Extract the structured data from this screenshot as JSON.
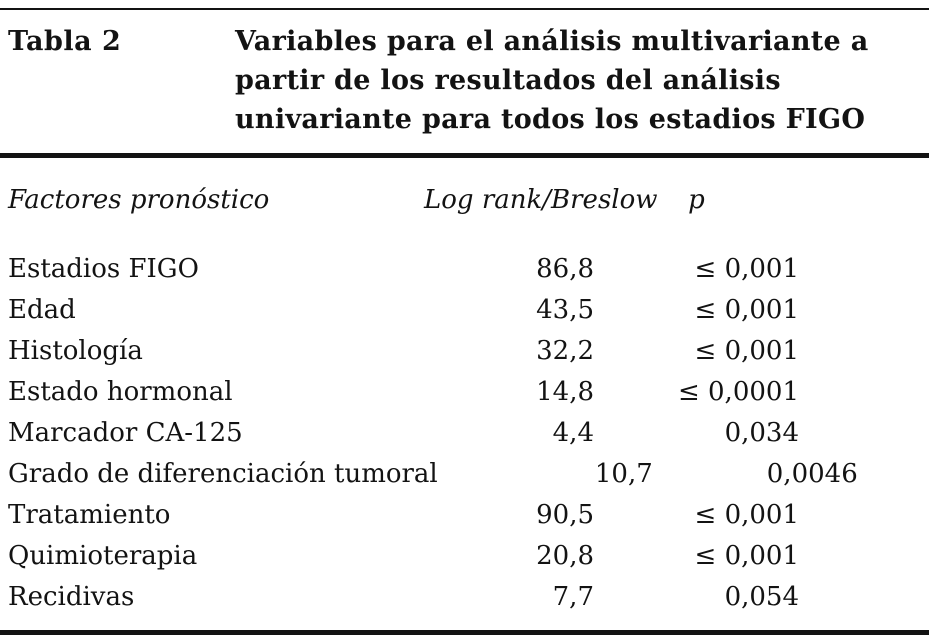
{
  "page": {
    "background": "#ffffff",
    "text_color": "#131313",
    "rule_color": "#131313"
  },
  "table": {
    "label": "Tabla 2",
    "title_lines": [
      "Variables para el análisis multivariante a",
      "partir de los resultados del análisis",
      "univariante para todos los estadios FIGO"
    ],
    "header": {
      "factor": "Factores pronóstico",
      "log_rank": "Log rank/Breslow",
      "p": "p"
    },
    "rows": [
      {
        "factor": "Estadios FIGO",
        "log_rank": "86,8",
        "p": "≤ 0,001"
      },
      {
        "factor": "Edad",
        "log_rank": "43,5",
        "p": "≤ 0,001"
      },
      {
        "factor": "Histología",
        "log_rank": "32,2",
        "p": "≤ 0,001"
      },
      {
        "factor": "Estado hormonal",
        "log_rank": "14,8",
        "p": "≤ 0,0001"
      },
      {
        "factor": "Marcador CA-125",
        "log_rank": "4,4",
        "p": "0,034"
      },
      {
        "factor": "Grado de diferenciación tumoral",
        "log_rank": "10,7",
        "p": "0,0046"
      },
      {
        "factor": "Tratamiento",
        "log_rank": "90,5",
        "p": "≤ 0,001"
      },
      {
        "factor": "Quimioterapia",
        "log_rank": "20,8",
        "p": "≤ 0,001"
      },
      {
        "factor": "Recidivas",
        "log_rank": "7,7",
        "p": "0,054"
      }
    ]
  }
}
